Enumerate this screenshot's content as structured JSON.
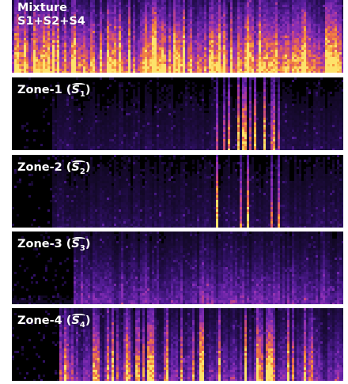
{
  "panels": [
    {
      "id": "mixture",
      "title": "Mixture",
      "subtitle": "S1+S2+S4"
    },
    {
      "id": "zone-1",
      "title_prefix": "Zone-1 (",
      "symbol": "S",
      "sub": "1",
      "title_suffix": ")"
    },
    {
      "id": "zone-2",
      "title_prefix": "Zone-2 (",
      "symbol": "S",
      "sub": "2",
      "title_suffix": ")"
    },
    {
      "id": "zone-3",
      "title_prefix": "Zone-3 (",
      "symbol": "S",
      "sub": "3",
      "title_suffix": ")"
    },
    {
      "id": "zone-4",
      "title_prefix": "Zone-4 (",
      "symbol": "S",
      "sub": "4",
      "title_suffix": ")"
    }
  ],
  "colormap": [
    "#0a0614",
    "#2b0f5c",
    "#5a1f9e",
    "#8c2fb7",
    "#c1438a",
    "#ea6a4a",
    "#f8a23a",
    "#fde26a"
  ]
}
